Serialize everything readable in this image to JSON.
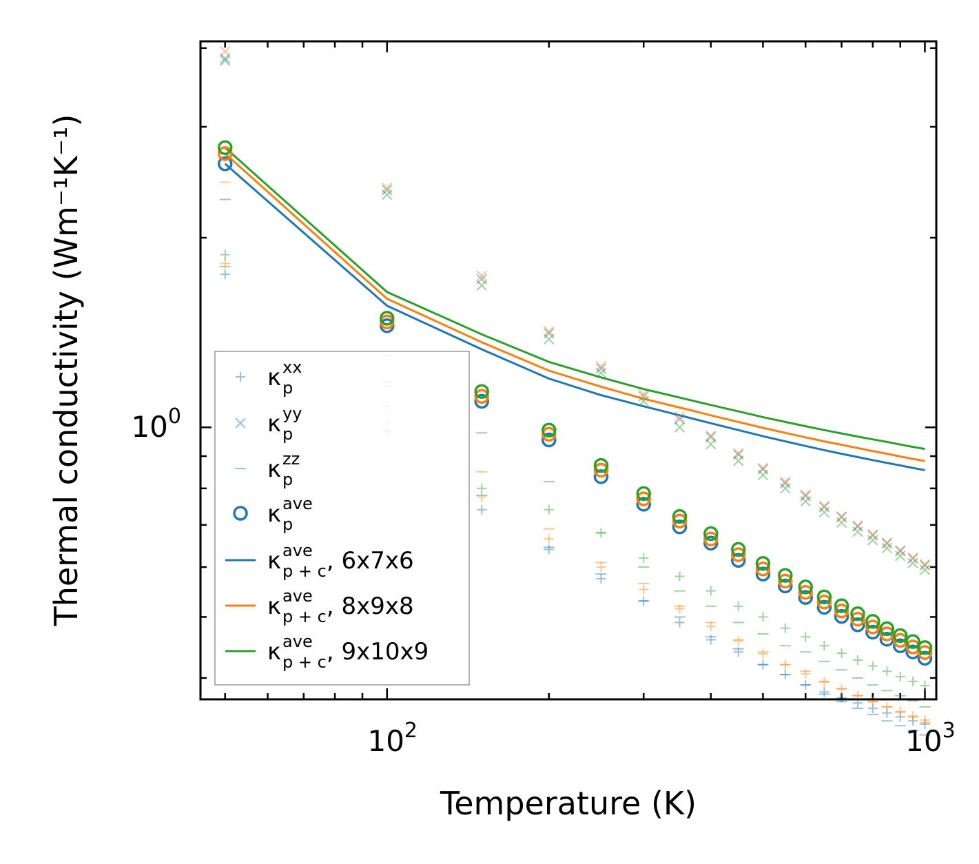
{
  "chart_data": {
    "type": "scatter",
    "xscale": "log",
    "yscale": "log",
    "xlim": [
      45,
      1050
    ],
    "ylim": [
      0.37,
      4.1
    ],
    "xlabel": "Temperature (K)",
    "ylabel": "Thermal conductivity (Wm⁻¹K⁻¹)",
    "x_tick_labels": [
      {
        "value": 100,
        "base": "10",
        "exp": "2"
      },
      {
        "value": 1000,
        "base": "10",
        "exp": "3"
      }
    ],
    "y_tick_labels": [
      {
        "value": 1,
        "base": "10",
        "exp": "0"
      }
    ],
    "colors": {
      "blue": "#1f77b4",
      "orange": "#ff7f0e",
      "green": "#2ca02c"
    },
    "x": [
      50,
      100,
      150,
      200,
      250,
      300,
      350,
      400,
      450,
      500,
      550,
      600,
      650,
      700,
      750,
      800,
      850,
      900,
      950,
      1000
    ],
    "series": [
      {
        "name": "6x7x6",
        "color": "#1f77b4",
        "kxx": [
          1.75,
          0.985,
          0.74,
          0.64,
          0.575,
          0.53,
          0.49,
          0.46,
          0.44,
          0.42,
          0.405,
          0.39,
          0.38,
          0.372,
          0.365,
          0.358,
          0.352,
          0.347,
          0.342,
          0.338
        ],
        "kyy": [
          3.85,
          2.38,
          1.72,
          1.41,
          1.24,
          1.12,
          1.03,
          0.965,
          0.905,
          0.858,
          0.815,
          0.778,
          0.747,
          0.72,
          0.696,
          0.674,
          0.654,
          0.636,
          0.619,
          0.604
        ],
        "kzz": [
          2.3,
          1.18,
          0.78,
          0.645,
          0.585,
          0.53,
          0.5,
          0.465,
          0.445,
          0.42,
          0.405,
          0.39,
          0.377,
          0.367,
          0.358,
          0.35,
          0.342,
          0.336,
          0.33,
          0.325
        ],
        "kave": [
          2.62,
          1.45,
          1.1,
          0.955,
          0.835,
          0.755,
          0.695,
          0.655,
          0.615,
          0.585,
          0.56,
          0.537,
          0.518,
          0.501,
          0.486,
          0.473,
          0.461,
          0.45,
          0.44,
          0.43
        ],
        "kpc": [
          2.62,
          1.56,
          1.33,
          1.195,
          1.125,
          1.08,
          1.045,
          1.015,
          0.99,
          0.968,
          0.95,
          0.934,
          0.92,
          0.908,
          0.897,
          0.887,
          0.878,
          0.87,
          0.862,
          0.855
        ]
      },
      {
        "name": "8x9x8",
        "color": "#ff7f0e",
        "kxx": [
          1.82,
          1.02,
          0.775,
          0.665,
          0.6,
          0.553,
          0.515,
          0.483,
          0.458,
          0.437,
          0.42,
          0.406,
          0.394,
          0.384,
          0.375,
          0.367,
          0.36,
          0.354,
          0.348,
          0.343
        ],
        "kyy": [
          3.95,
          2.4,
          1.74,
          1.42,
          1.25,
          1.13,
          1.04,
          0.97,
          0.91,
          0.862,
          0.82,
          0.782,
          0.75,
          0.722,
          0.698,
          0.676,
          0.656,
          0.638,
          0.621,
          0.606
        ],
        "kzz": [
          2.45,
          1.3,
          0.85,
          0.69,
          0.61,
          0.565,
          0.52,
          0.49,
          0.46,
          0.44,
          0.42,
          0.41,
          0.395,
          0.385,
          0.375,
          0.367,
          0.36,
          0.353,
          0.347,
          0.34
        ],
        "kave": [
          2.72,
          1.47,
          1.12,
          0.975,
          0.855,
          0.77,
          0.71,
          0.665,
          0.628,
          0.596,
          0.57,
          0.547,
          0.528,
          0.511,
          0.496,
          0.482,
          0.47,
          0.459,
          0.448,
          0.439
        ],
        "kpc": [
          2.72,
          1.6,
          1.365,
          1.23,
          1.16,
          1.11,
          1.075,
          1.045,
          1.02,
          0.998,
          0.98,
          0.964,
          0.95,
          0.938,
          0.927,
          0.917,
          0.908,
          0.899,
          0.891,
          0.884
        ]
      },
      {
        "name": "9x10x9",
        "color": "#2ca02c",
        "kxx": [
          1.88,
          1.08,
          0.8,
          0.74,
          0.68,
          0.62,
          0.58,
          0.55,
          0.52,
          0.5,
          0.48,
          0.465,
          0.45,
          0.438,
          0.427,
          0.418,
          0.41,
          0.402,
          0.395,
          0.389
        ],
        "kyy": [
          3.82,
          2.34,
          1.68,
          1.38,
          1.22,
          1.1,
          1.0,
          0.94,
          0.885,
          0.84,
          0.8,
          0.763,
          0.733,
          0.706,
          0.683,
          0.662,
          0.643,
          0.625,
          0.609,
          0.594
        ],
        "kzz": [
          1.8,
          1.16,
          0.98,
          0.82,
          0.68,
          0.6,
          0.55,
          0.52,
          0.49,
          0.47,
          0.45,
          0.44,
          0.425,
          0.412,
          0.4,
          0.39,
          0.382,
          0.375,
          0.368,
          0.36
        ],
        "kave": [
          2.78,
          1.49,
          1.14,
          0.99,
          0.87,
          0.785,
          0.722,
          0.678,
          0.64,
          0.608,
          0.582,
          0.558,
          0.538,
          0.521,
          0.506,
          0.492,
          0.479,
          0.467,
          0.457,
          0.447
        ],
        "kpc": [
          2.78,
          1.64,
          1.405,
          1.27,
          1.2,
          1.15,
          1.115,
          1.085,
          1.06,
          1.038,
          1.02,
          1.004,
          0.99,
          0.978,
          0.967,
          0.957,
          0.948,
          0.939,
          0.931,
          0.924
        ]
      }
    ],
    "legend": {
      "position": "lower-left",
      "entries": [
        {
          "kind": "plus",
          "color": "#1f77b4",
          "base": "κ",
          "sub": "p",
          "sup": "xx",
          "suffix": ""
        },
        {
          "kind": "cross",
          "color": "#1f77b4",
          "base": "κ",
          "sub": "p",
          "sup": "yy",
          "suffix": ""
        },
        {
          "kind": "dash",
          "color": "#1f77b4",
          "base": "κ",
          "sub": "p",
          "sup": "zz",
          "suffix": ""
        },
        {
          "kind": "circle",
          "color": "#1f77b4",
          "base": "κ",
          "sub": "p",
          "sup": "ave",
          "suffix": ""
        },
        {
          "kind": "line",
          "color": "#1f77b4",
          "base": "κ",
          "sub": "p + c",
          "sup": "ave",
          "suffix": ", 6x7x6"
        },
        {
          "kind": "line",
          "color": "#ff7f0e",
          "base": "κ",
          "sub": "p + c",
          "sup": "ave",
          "suffix": ", 8x9x8"
        },
        {
          "kind": "line",
          "color": "#2ca02c",
          "base": "κ",
          "sub": "p + c",
          "sup": "ave",
          "suffix": ", 9x10x9"
        }
      ]
    }
  }
}
